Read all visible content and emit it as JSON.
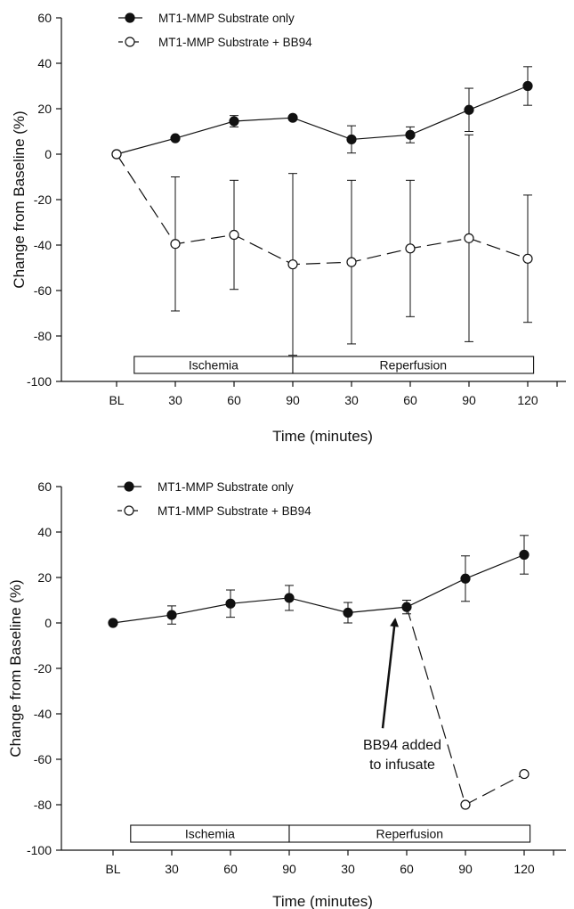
{
  "chart_data": [
    {
      "type": "line",
      "xlabel": "Time (minutes)",
      "ylabel": "Change from Baseline (%)",
      "ylim": [
        -100,
        60
      ],
      "yticks": [
        "60",
        "40",
        "20",
        "0",
        "-20",
        "-40",
        "-60",
        "-80",
        "-100"
      ],
      "categories": [
        "BL",
        "30",
        "60",
        "90",
        "30",
        "60",
        "90",
        "120"
      ],
      "phases": [
        {
          "label": "Ischemia",
          "from": 0.3,
          "to": 3
        },
        {
          "label": "Reperfusion",
          "from": 3,
          "to": 7.1
        }
      ],
      "series": [
        {
          "name": "MT1-MMP Substrate only",
          "marker": "filled",
          "line": "solid",
          "points": [
            {
              "i": 0,
              "y": 0,
              "err": null
            },
            {
              "i": 1,
              "y": 7,
              "err": null
            },
            {
              "i": 2,
              "y": 14.5,
              "err": 2.5
            },
            {
              "i": 3,
              "y": 16,
              "err": null
            },
            {
              "i": 4,
              "y": 6.5,
              "err": 6
            },
            {
              "i": 5,
              "y": 8.5,
              "err": 3.5
            },
            {
              "i": 6,
              "y": 19.5,
              "err": 9.5
            },
            {
              "i": 7,
              "y": 30,
              "err": 8.5
            }
          ]
        },
        {
          "name": "MT1-MMP Substrate + BB94",
          "marker": "open",
          "line": "dashed",
          "points": [
            {
              "i": 0,
              "y": 0,
              "err": null
            },
            {
              "i": 1,
              "y": -39.5,
              "err": 29.5
            },
            {
              "i": 2,
              "y": -35.5,
              "err": 24
            },
            {
              "i": 3,
              "y": -48.5,
              "err": 40
            },
            {
              "i": 4,
              "y": -47.5,
              "err": 36
            },
            {
              "i": 5,
              "y": -41.5,
              "err": 30
            },
            {
              "i": 6,
              "y": -37,
              "err": 45.5
            },
            {
              "i": 7,
              "y": -46,
              "err": 28
            }
          ]
        }
      ]
    },
    {
      "type": "line",
      "xlabel": "Time (minutes)",
      "ylabel": "Change from Baseline (%)",
      "ylim": [
        -100,
        60
      ],
      "yticks": [
        "60",
        "40",
        "20",
        "0",
        "-20",
        "-40",
        "-60",
        "-80",
        "-100"
      ],
      "categories": [
        "BL",
        "30",
        "60",
        "90",
        "30",
        "60",
        "90",
        "120"
      ],
      "phases": [
        {
          "label": "Ischemia",
          "from": 0.3,
          "to": 3
        },
        {
          "label": "Reperfusion",
          "from": 3,
          "to": 7.1
        }
      ],
      "annotation": {
        "lines": [
          "BB94 added",
          "to infusate"
        ],
        "arrow_to": {
          "i": 5,
          "y": 7
        },
        "text_at": {
          "i": 5,
          "y": -44
        }
      },
      "series": [
        {
          "name": "MT1-MMP Substrate only",
          "marker": "filled",
          "line": "solid",
          "points": [
            {
              "i": 0,
              "y": 0,
              "err": null
            },
            {
              "i": 1,
              "y": 3.5,
              "err": 4
            },
            {
              "i": 2,
              "y": 8.5,
              "err": 6
            },
            {
              "i": 3,
              "y": 11,
              "err": 5.5
            },
            {
              "i": 4,
              "y": 4.5,
              "err": 4.5
            },
            {
              "i": 5,
              "y": 7,
              "err": 3
            },
            {
              "i": 6,
              "y": 19.5,
              "err": 10
            },
            {
              "i": 7,
              "y": 30,
              "err": 8.5
            }
          ]
        },
        {
          "name": "MT1-MMP Substrate + BB94",
          "marker": "open",
          "line": "dashed",
          "points": [
            {
              "i": 5,
              "y": 7,
              "err": null,
              "hidden": true
            },
            {
              "i": 6,
              "y": -80,
              "err": null
            },
            {
              "i": 7,
              "y": -66.5,
              "err": null
            }
          ]
        }
      ]
    }
  ]
}
